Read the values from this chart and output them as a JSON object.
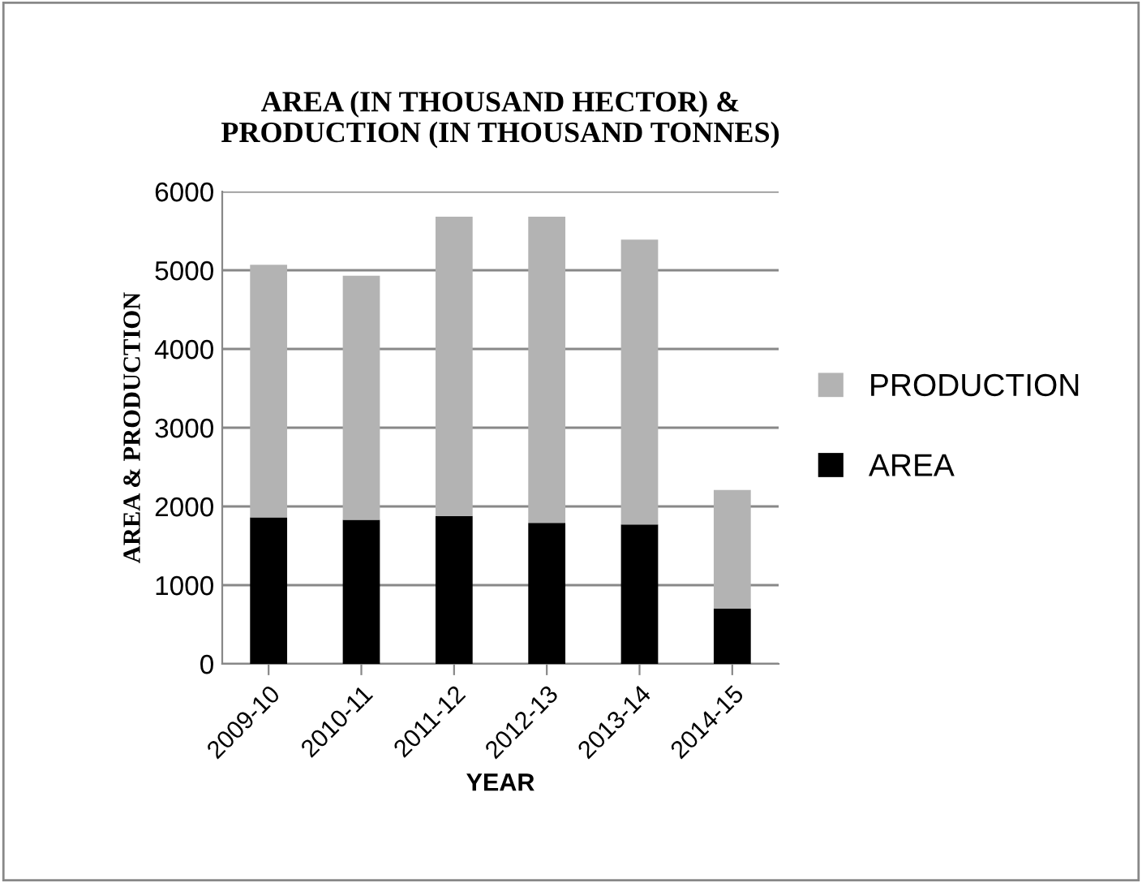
{
  "chart_data": {
    "type": "bar",
    "title": "AREA (IN THOUSAND HECTOR) &\nPRODUCTION (IN THOUSAND TONNES)",
    "xlabel": "YEAR",
    "ylabel": "AREA & PRODUCTION",
    "categories": [
      "2009-10",
      "2010-11",
      "2011-12",
      "2012-13",
      "2013-14",
      "2014-15"
    ],
    "stacked": true,
    "series": [
      {
        "name": "AREA",
        "color": "#000000",
        "values": [
          1860,
          1830,
          1880,
          1790,
          1770,
          700
        ]
      },
      {
        "name": "PRODUCTION",
        "color": "#b3b3b3",
        "values": [
          3210,
          3100,
          3800,
          3890,
          3620,
          1510
        ]
      }
    ],
    "ylim": [
      0,
      6000
    ],
    "yticks": [
      0,
      1000,
      2000,
      3000,
      4000,
      5000,
      6000
    ],
    "grid": "y",
    "legend": "right"
  }
}
